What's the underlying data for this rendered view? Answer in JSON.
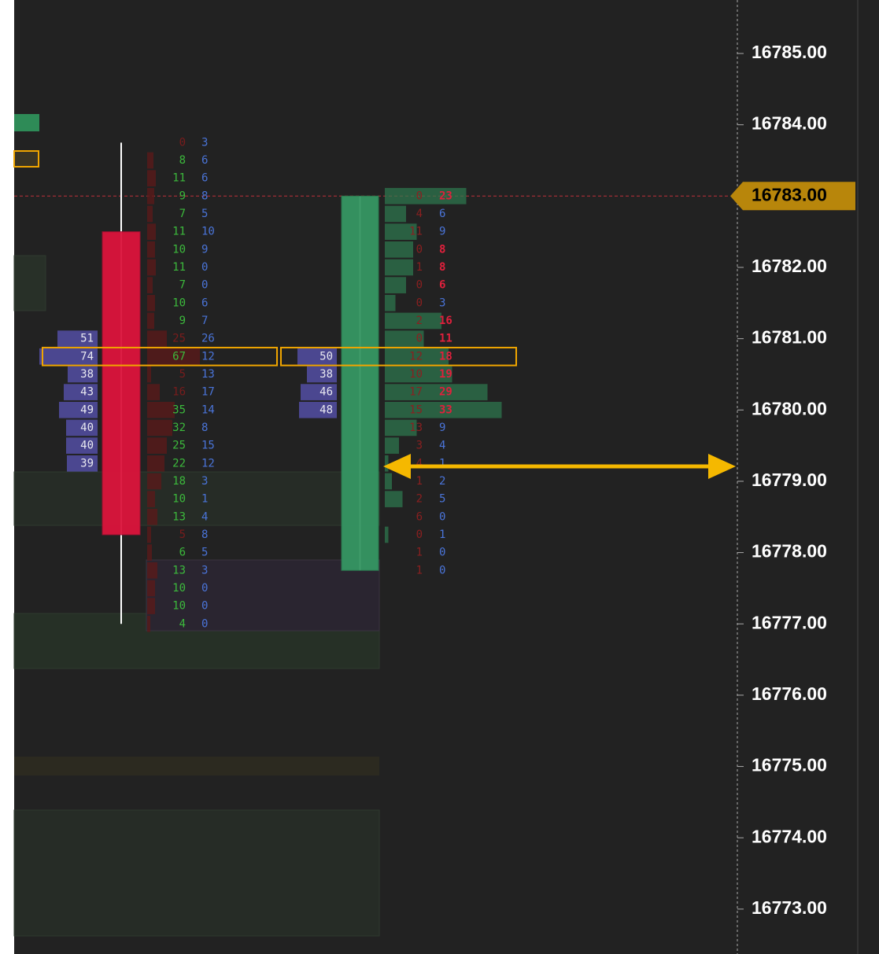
{
  "chart_data": {
    "type": "footprint",
    "ylim": [
      16772.37,
      16785.75
    ],
    "yticks": [
      {
        "value": 16785,
        "label": "16785.00"
      },
      {
        "value": 16784,
        "label": "16784.00"
      },
      {
        "value": 16783,
        "label": "16783.00"
      },
      {
        "value": 16782,
        "label": "16782.00"
      },
      {
        "value": 16781,
        "label": "16781.00"
      },
      {
        "value": 16780,
        "label": "16780.00"
      },
      {
        "value": 16779,
        "label": "16779.00"
      },
      {
        "value": 16778,
        "label": "16778.00"
      },
      {
        "value": 16777,
        "label": "16777.00"
      },
      {
        "value": 16776,
        "label": "16776.00"
      },
      {
        "value": 16775,
        "label": "16775.00"
      },
      {
        "value": 16774,
        "label": "16774.00"
      },
      {
        "value": 16773,
        "label": "16773.00"
      }
    ],
    "last_price": {
      "value": 16783,
      "label": "16783.00"
    },
    "candles": [
      {
        "open": 16782.5,
        "high": 16783.75,
        "low": 16777.0,
        "close": 16778.25,
        "color": "#dc143c",
        "rows": [
          {
            "price": 16783.75,
            "bid": 0,
            "ask": 3
          },
          {
            "price": 16783.5,
            "bid": 8,
            "ask": 6
          },
          {
            "price": 16783.25,
            "bid": 11,
            "ask": 6
          },
          {
            "price": 16783.0,
            "bid": 9,
            "ask": 8
          },
          {
            "price": 16782.75,
            "bid": 7,
            "ask": 5
          },
          {
            "price": 16782.5,
            "bid": 11,
            "ask": 10
          },
          {
            "price": 16782.25,
            "bid": 10,
            "ask": 9
          },
          {
            "price": 16782.0,
            "bid": 11,
            "ask": 0
          },
          {
            "price": 16781.75,
            "bid": 7,
            "ask": 0
          },
          {
            "price": 16781.5,
            "bid": 10,
            "ask": 6
          },
          {
            "price": 16781.25,
            "bid": 9,
            "ask": 7
          },
          {
            "price": 16781.0,
            "bid": 25,
            "ask": 26
          },
          {
            "price": 16780.75,
            "bid": 67,
            "ask": 12
          },
          {
            "price": 16780.5,
            "bid": 5,
            "ask": 13
          },
          {
            "price": 16780.25,
            "bid": 16,
            "ask": 17
          },
          {
            "price": 16780.0,
            "bid": 35,
            "ask": 14
          },
          {
            "price": 16779.75,
            "bid": 32,
            "ask": 8
          },
          {
            "price": 16779.5,
            "bid": 25,
            "ask": 15
          },
          {
            "price": 16779.25,
            "bid": 22,
            "ask": 12
          },
          {
            "price": 16779.0,
            "bid": 18,
            "ask": 3
          },
          {
            "price": 16778.75,
            "bid": 10,
            "ask": 1
          },
          {
            "price": 16778.5,
            "bid": 13,
            "ask": 4
          },
          {
            "price": 16778.25,
            "bid": 5,
            "ask": 8
          },
          {
            "price": 16778.0,
            "bid": 6,
            "ask": 5
          },
          {
            "price": 16777.75,
            "bid": 13,
            "ask": 3
          },
          {
            "price": 16777.5,
            "bid": 10,
            "ask": 0
          },
          {
            "price": 16777.25,
            "bid": 10,
            "ask": 0
          },
          {
            "price": 16777.0,
            "bid": 4,
            "ask": 0
          }
        ],
        "profile": [
          {
            "price": 16781.0,
            "value": 51
          },
          {
            "price": 16780.75,
            "value": 74
          },
          {
            "price": 16780.5,
            "value": 38
          },
          {
            "price": 16780.25,
            "value": 43
          },
          {
            "price": 16780.0,
            "value": 49
          },
          {
            "price": 16779.75,
            "value": 40
          },
          {
            "price": 16779.5,
            "value": 40
          },
          {
            "price": 16779.25,
            "value": 39
          }
        ]
      },
      {
        "open": 16777.75,
        "high": 16783.0,
        "low": 16777.75,
        "close": 16783.0,
        "color": "#359663",
        "rows": [
          {
            "price": 16783.0,
            "bid": 0,
            "ask": 23
          },
          {
            "price": 16782.75,
            "bid": 4,
            "ask": 6
          },
          {
            "price": 16782.5,
            "bid": 11,
            "ask": 9
          },
          {
            "price": 16782.25,
            "bid": 0,
            "ask": 8
          },
          {
            "price": 16782.0,
            "bid": 1,
            "ask": 8
          },
          {
            "price": 16781.75,
            "bid": 0,
            "ask": 6
          },
          {
            "price": 16781.5,
            "bid": 0,
            "ask": 3
          },
          {
            "price": 16781.25,
            "bid": 2,
            "ask": 16
          },
          {
            "price": 16781.0,
            "bid": 0,
            "ask": 11
          },
          {
            "price": 16780.75,
            "bid": 12,
            "ask": 18
          },
          {
            "price": 16780.5,
            "bid": 10,
            "ask": 19
          },
          {
            "price": 16780.25,
            "bid": 17,
            "ask": 29
          },
          {
            "price": 16780.0,
            "bid": 15,
            "ask": 33
          },
          {
            "price": 16779.75,
            "bid": 13,
            "ask": 9
          },
          {
            "price": 16779.5,
            "bid": 3,
            "ask": 4
          },
          {
            "price": 16779.25,
            "bid": 4,
            "ask": 1
          },
          {
            "price": 16779.0,
            "bid": 1,
            "ask": 2
          },
          {
            "price": 16778.75,
            "bid": 2,
            "ask": 5
          },
          {
            "price": 16778.5,
            "bid": 6,
            "ask": 0
          },
          {
            "price": 16778.25,
            "bid": 0,
            "ask": 1
          },
          {
            "price": 16778.0,
            "bid": 1,
            "ask": 0
          },
          {
            "price": 16777.75,
            "bid": 1,
            "ask": 0
          }
        ],
        "profile": [
          {
            "price": 16780.75,
            "value": 50
          },
          {
            "price": 16780.5,
            "value": 38
          },
          {
            "price": 16780.25,
            "value": 46
          },
          {
            "price": 16780.0,
            "value": 48
          }
        ]
      }
    ]
  }
}
